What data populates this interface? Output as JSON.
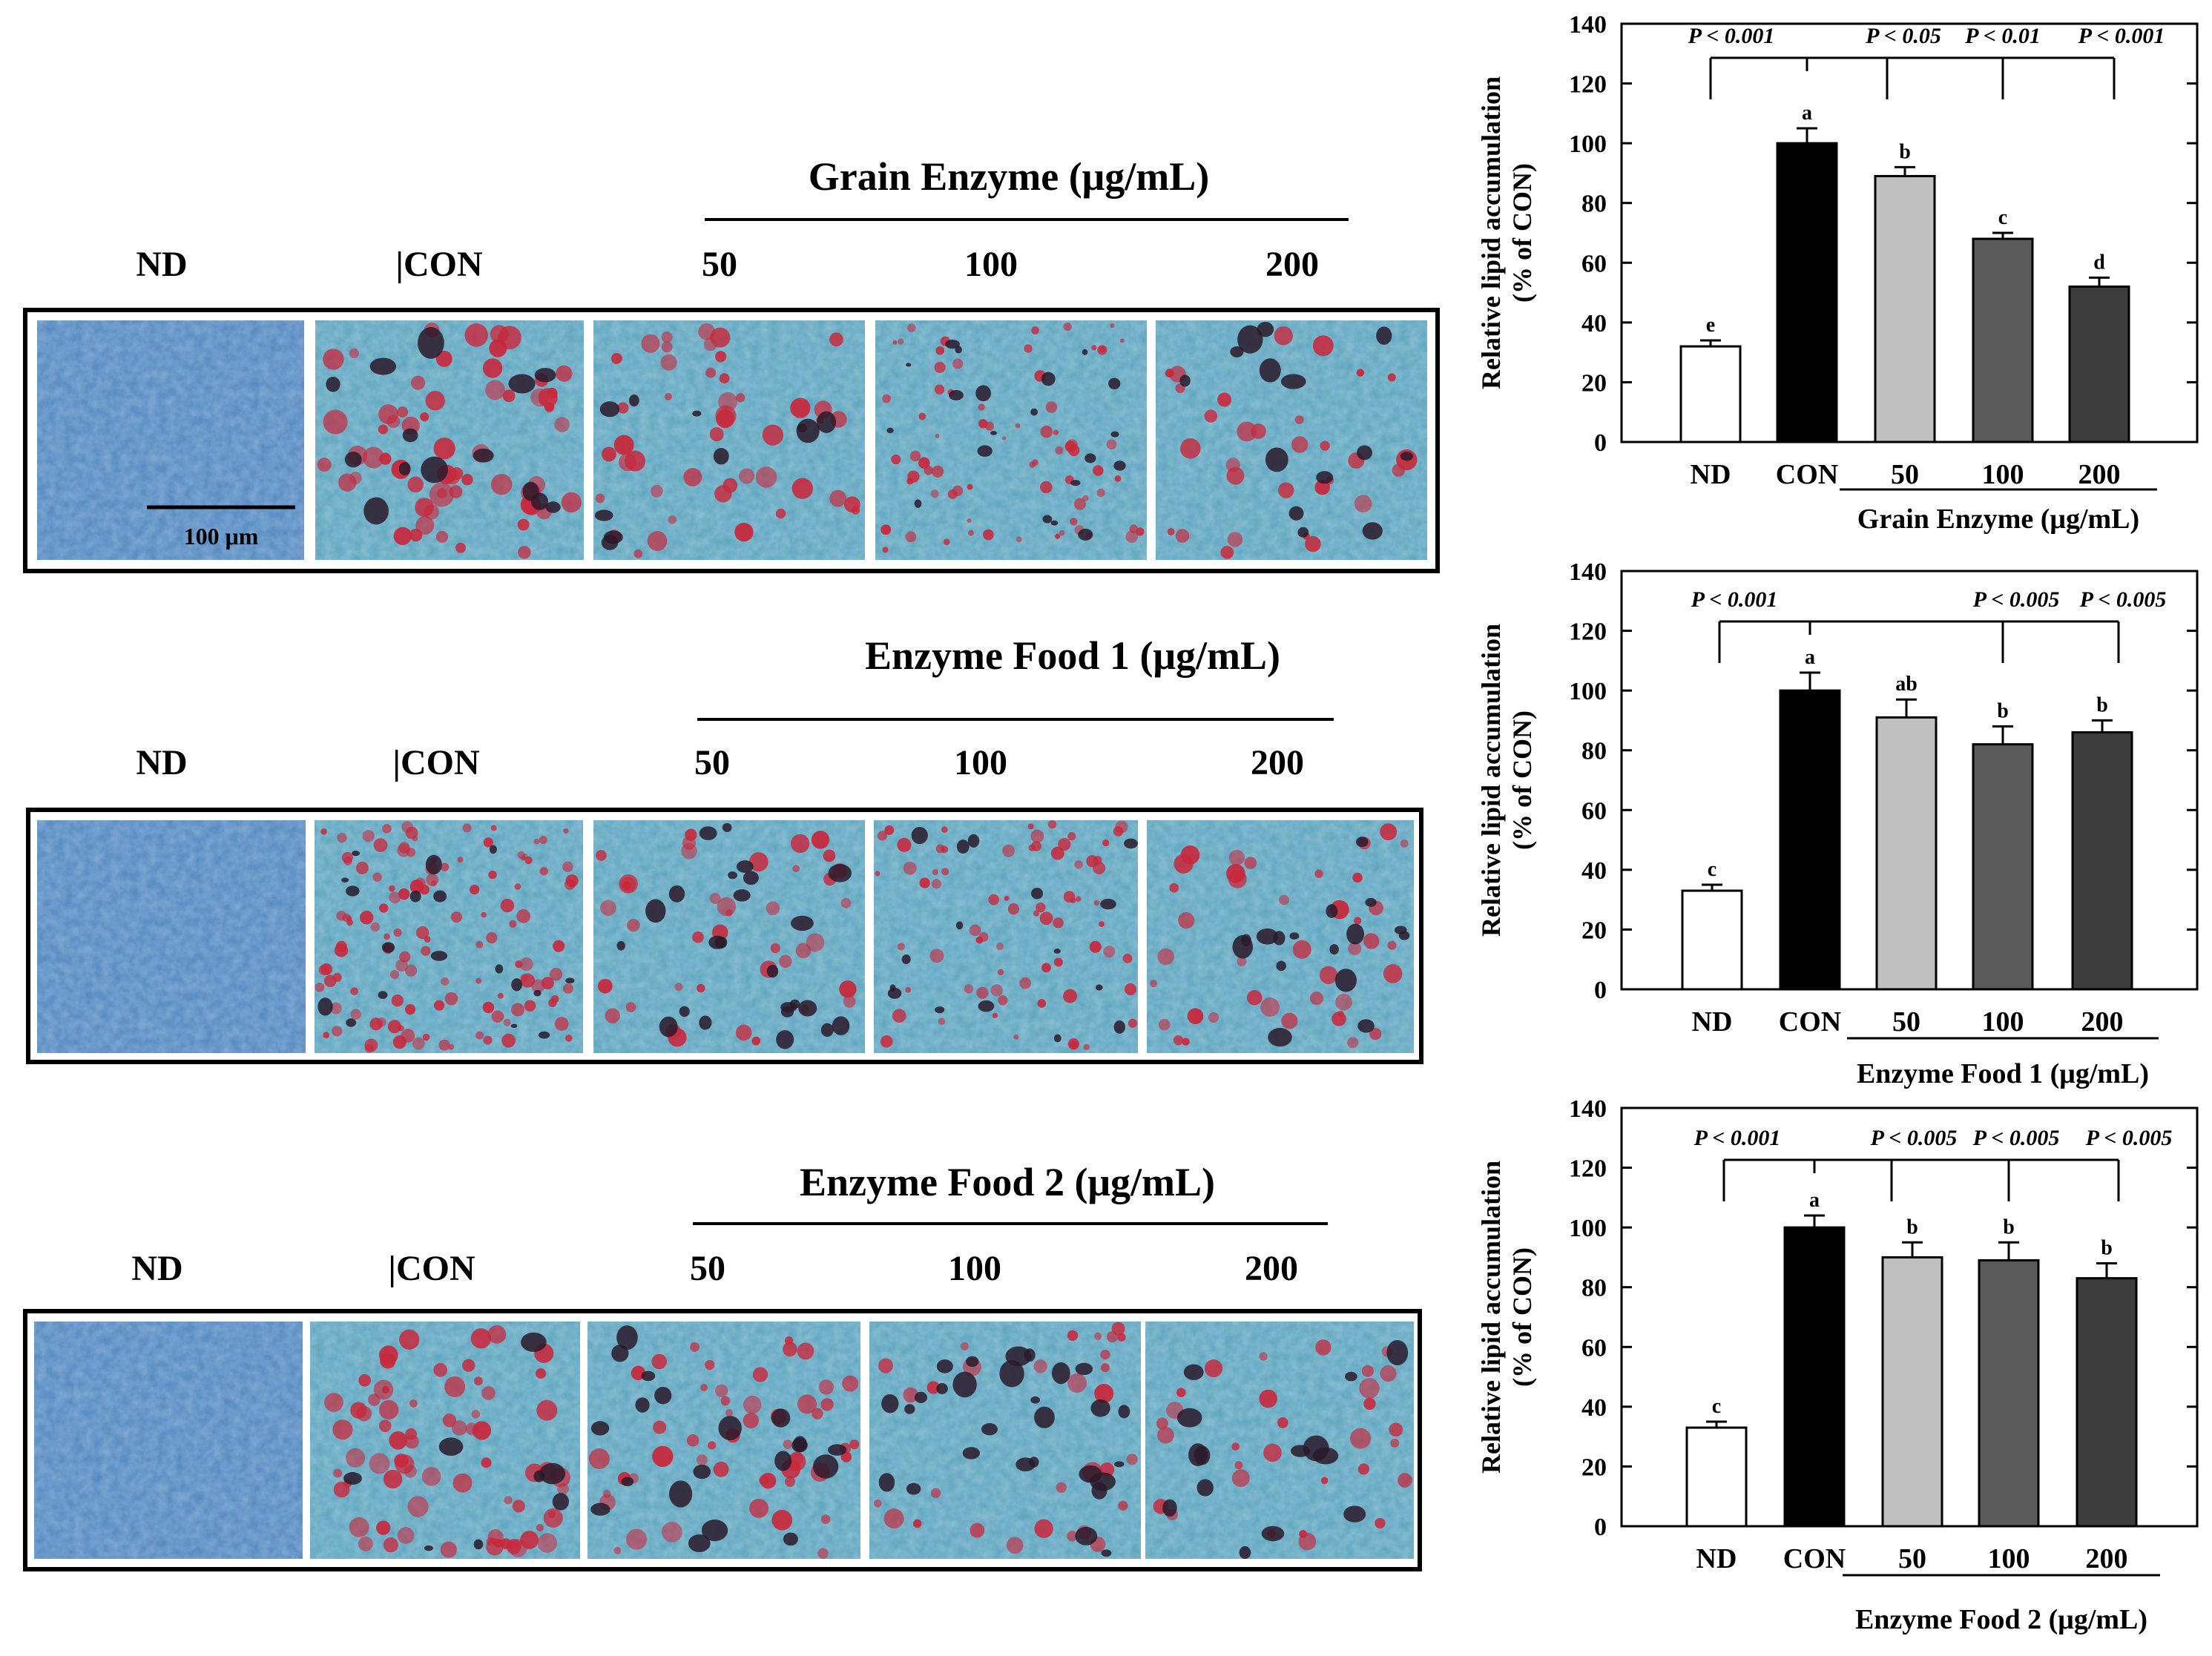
{
  "image_panels": [
    {
      "title": "Grain Enzyme (μg/mL)",
      "labels": [
        "ND",
        "|CON",
        "50",
        "100",
        "200"
      ],
      "scale_bar_label": "100 μm"
    },
    {
      "title": "Enzyme Food 1 (μg/mL)",
      "labels": [
        "ND",
        "|CON",
        "50",
        "100",
        "200"
      ],
      "scale_bar_label": ""
    },
    {
      "title": "Enzyme Food 2 (μg/mL)",
      "labels": [
        "ND",
        "|CON",
        "50",
        "100",
        "200"
      ],
      "scale_bar_label": ""
    }
  ],
  "colors": {
    "bar_fills": [
      "#ffffff",
      "#000000",
      "#c0c0c0",
      "#5a5a5a",
      "#3c3c3c"
    ],
    "microscopy_base": "#5a9fbf",
    "stain_red": "#c8283c",
    "stain_dark": "#2a1a2a"
  },
  "chart_data": [
    {
      "type": "bar",
      "categories": [
        "ND",
        "CON",
        "50",
        "100",
        "200"
      ],
      "values": [
        32,
        100,
        89,
        68,
        52
      ],
      "errors": [
        2,
        5,
        3,
        2,
        3
      ],
      "letters": [
        "e",
        "a",
        "b",
        "c",
        "d"
      ],
      "ylabel_line1": "Relative lipid accumulation",
      "ylabel_line2": "(% of CON)",
      "xgroup_label": "Grain Enzyme (μg/mL)",
      "ylim": [
        0,
        140
      ],
      "yticks": [
        0,
        20,
        40,
        60,
        80,
        100,
        120,
        140
      ],
      "pvalues": [
        "P < 0.001",
        "P < 0.05",
        "P < 0.01",
        "P < 0.001"
      ]
    },
    {
      "type": "bar",
      "categories": [
        "ND",
        "CON",
        "50",
        "100",
        "200"
      ],
      "values": [
        33,
        100,
        91,
        82,
        86
      ],
      "errors": [
        2,
        6,
        6,
        6,
        4
      ],
      "letters": [
        "c",
        "a",
        "ab",
        "b",
        "b"
      ],
      "ylabel_line1": "Relative lipid accumulation",
      "ylabel_line2": "(% of CON)",
      "xgroup_label": "Enzyme Food 1 (μg/mL)",
      "ylim": [
        0,
        140
      ],
      "yticks": [
        0,
        20,
        40,
        60,
        80,
        100,
        120,
        140
      ],
      "pvalues": [
        "P < 0.001",
        "P < 0.005",
        "P < 0.005"
      ]
    },
    {
      "type": "bar",
      "categories": [
        "ND",
        "CON",
        "50",
        "100",
        "200"
      ],
      "values": [
        33,
        100,
        90,
        89,
        83
      ],
      "errors": [
        2,
        4,
        5,
        6,
        5
      ],
      "letters": [
        "c",
        "a",
        "b",
        "b",
        "b"
      ],
      "ylabel_line1": "Relative lipid accumulation",
      "ylabel_line2": "(% of CON)",
      "xgroup_label": "Enzyme Food 2 (μg/mL)",
      "ylim": [
        0,
        140
      ],
      "yticks": [
        0,
        20,
        40,
        60,
        80,
        100,
        120,
        140
      ],
      "pvalues": [
        "P < 0.001",
        "P < 0.005",
        "P < 0.005",
        "P < 0.005"
      ]
    }
  ]
}
